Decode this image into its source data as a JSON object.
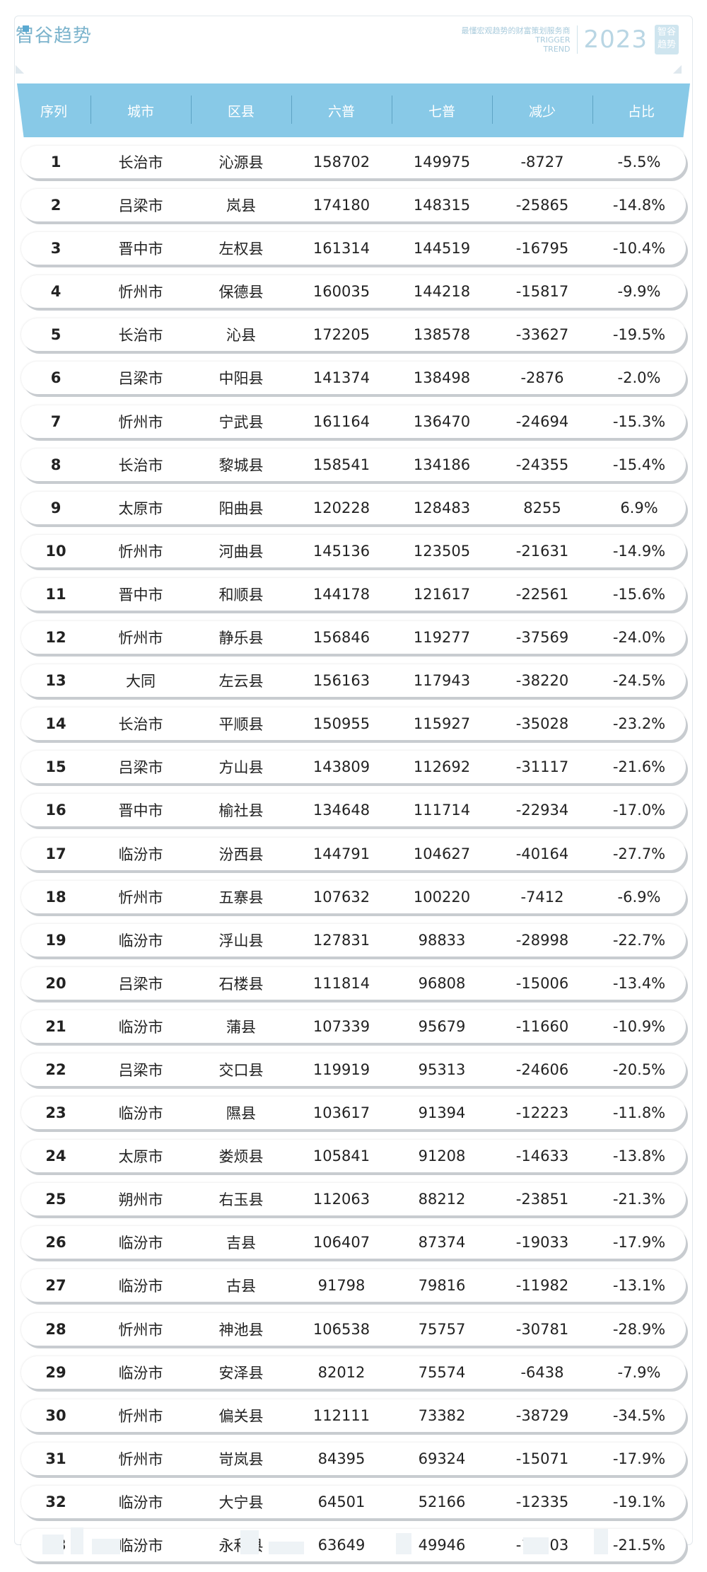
{
  "brand": {
    "logo_text": "智谷趋势",
    "tagline": "最懂宏观趋势的财富策划服务商",
    "en_line1": "TRIGGER",
    "en_line2": "TREND",
    "year": "2023",
    "badge_line1": "智谷",
    "badge_line2": "趋势"
  },
  "table": {
    "headers": [
      "序列",
      "城市",
      "区县",
      "六普",
      "七普",
      "减少",
      "占比"
    ],
    "rows": [
      [
        "1",
        "长治市",
        "沁源县",
        "158702",
        "149975",
        "-8727",
        "-5.5%"
      ],
      [
        "2",
        "吕梁市",
        "岚县",
        "174180",
        "148315",
        "-25865",
        "-14.8%"
      ],
      [
        "3",
        "晋中市",
        "左权县",
        "161314",
        "144519",
        "-16795",
        "-10.4%"
      ],
      [
        "4",
        "忻州市",
        "保德县",
        "160035",
        "144218",
        "-15817",
        "-9.9%"
      ],
      [
        "5",
        "长治市",
        "沁县",
        "172205",
        "138578",
        "-33627",
        "-19.5%"
      ],
      [
        "6",
        "吕梁市",
        "中阳县",
        "141374",
        "138498",
        "-2876",
        "-2.0%"
      ],
      [
        "7",
        "忻州市",
        "宁武县",
        "161164",
        "136470",
        "-24694",
        "-15.3%"
      ],
      [
        "8",
        "长治市",
        "黎城县",
        "158541",
        "134186",
        "-24355",
        "-15.4%"
      ],
      [
        "9",
        "太原市",
        "阳曲县",
        "120228",
        "128483",
        "8255",
        "6.9%"
      ],
      [
        "10",
        "忻州市",
        "河曲县",
        "145136",
        "123505",
        "-21631",
        "-14.9%"
      ],
      [
        "11",
        "晋中市",
        "和顺县",
        "144178",
        "121617",
        "-22561",
        "-15.6%"
      ],
      [
        "12",
        "忻州市",
        "静乐县",
        "156846",
        "119277",
        "-37569",
        "-24.0%"
      ],
      [
        "13",
        "大同",
        "左云县",
        "156163",
        "117943",
        "-38220",
        "-24.5%"
      ],
      [
        "14",
        "长治市",
        "平顺县",
        "150955",
        "115927",
        "-35028",
        "-23.2%"
      ],
      [
        "15",
        "吕梁市",
        "方山县",
        "143809",
        "112692",
        "-31117",
        "-21.6%"
      ],
      [
        "16",
        "晋中市",
        "榆社县",
        "134648",
        "111714",
        "-22934",
        "-17.0%"
      ],
      [
        "17",
        "临汾市",
        "汾西县",
        "144791",
        "104627",
        "-40164",
        "-27.7%"
      ],
      [
        "18",
        "忻州市",
        "五寨县",
        "107632",
        "100220",
        "-7412",
        "-6.9%"
      ],
      [
        "19",
        "临汾市",
        "浮山县",
        "127831",
        "98833",
        "-28998",
        "-22.7%"
      ],
      [
        "20",
        "吕梁市",
        "石楼县",
        "111814",
        "96808",
        "-15006",
        "-13.4%"
      ],
      [
        "21",
        "临汾市",
        "蒲县",
        "107339",
        "95679",
        "-11660",
        "-10.9%"
      ],
      [
        "22",
        "吕梁市",
        "交口县",
        "119919",
        "95313",
        "-24606",
        "-20.5%"
      ],
      [
        "23",
        "临汾市",
        "隰县",
        "103617",
        "91394",
        "-12223",
        "-11.8%"
      ],
      [
        "24",
        "太原市",
        "娄烦县",
        "105841",
        "91208",
        "-14633",
        "-13.8%"
      ],
      [
        "25",
        "朔州市",
        "右玉县",
        "112063",
        "88212",
        "-23851",
        "-21.3%"
      ],
      [
        "26",
        "临汾市",
        "吉县",
        "106407",
        "87374",
        "-19033",
        "-17.9%"
      ],
      [
        "27",
        "临汾市",
        "古县",
        "91798",
        "79816",
        "-11982",
        "-13.1%"
      ],
      [
        "28",
        "忻州市",
        "神池县",
        "106538",
        "75757",
        "-30781",
        "-28.9%"
      ],
      [
        "29",
        "临汾市",
        "安泽县",
        "82012",
        "75574",
        "-6438",
        "-7.9%"
      ],
      [
        "30",
        "忻州市",
        "偏关县",
        "112111",
        "73382",
        "-38729",
        "-34.5%"
      ],
      [
        "31",
        "忻州市",
        "岢岚县",
        "84395",
        "69324",
        "-15071",
        "-17.9%"
      ],
      [
        "32",
        "临汾市",
        "大宁县",
        "64501",
        "52166",
        "-12335",
        "-19.1%"
      ],
      [
        "33",
        "临汾市",
        "永和县",
        "63649",
        "49946",
        "-13703",
        "-21.5%"
      ]
    ]
  }
}
